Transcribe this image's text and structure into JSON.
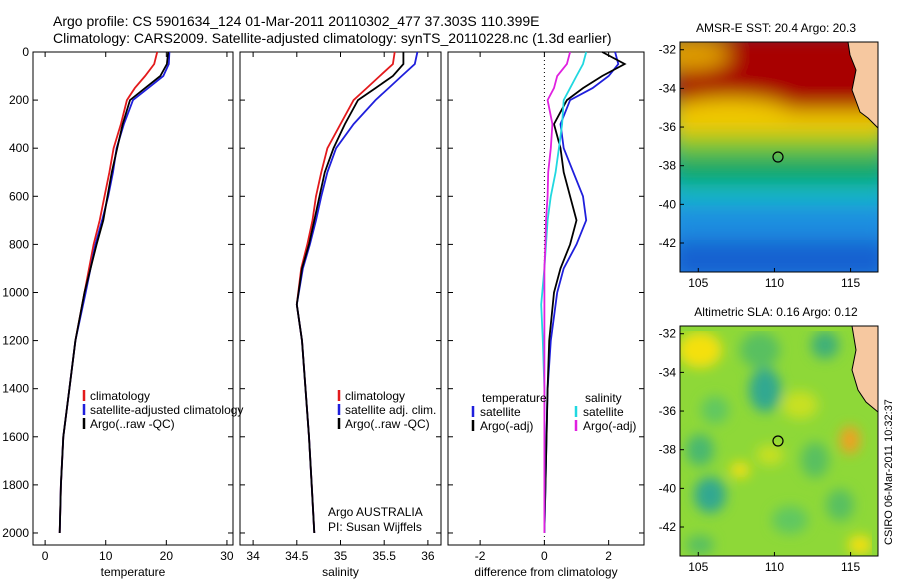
{
  "title_line1": "Argo profile: CS 5901634_124 01-Mar-2011 20110302_477 37.303S 110.399E",
  "title_line2": "Climatology: CARS2009. Satellite-adjusted climatology: synTS_20110228.nc (1.3d earlier)",
  "footer_credit": "CSIRO 06-Mar-2011 10:32:37",
  "colors": {
    "climatology": "#e31a1c",
    "satellite": "#1f1fdc",
    "argo": "#000000",
    "argo_adj_salinity": "#e020e0",
    "satellite_salinity": "#20d8e0"
  },
  "chart_data": [
    {
      "type": "line",
      "xlabel": "temperature",
      "ylabel": "",
      "xlim": [
        -2,
        31
      ],
      "ylim": [
        2050,
        0
      ],
      "xticks": [
        0,
        10,
        20,
        30
      ],
      "yticks": [
        0,
        200,
        400,
        600,
        800,
        1000,
        1200,
        1400,
        1600,
        1800,
        2000
      ],
      "legend": {
        "placement": "bottom-right",
        "entries": [
          "climatology",
          "satellite-adjusted climatology",
          "Argo(..raw -QC)"
        ]
      },
      "series": [
        {
          "name": "climatology",
          "x": [
            18.5,
            18.0,
            16.5,
            14.8,
            13.5,
            12.5,
            11.3,
            10.6,
            9.8,
            9.0,
            8.0,
            6.5,
            5.0,
            4.0,
            3.0,
            2.6,
            2.4
          ],
          "y": [
            0,
            50,
            100,
            150,
            200,
            300,
            400,
            500,
            600,
            700,
            800,
            1000,
            1200,
            1400,
            1600,
            1800,
            2000
          ]
        },
        {
          "name": "satellite-adjusted climatology",
          "x": [
            20.5,
            20.4,
            19.5,
            17.0,
            14.5,
            13.0,
            11.8,
            11.2,
            10.4,
            9.4,
            8.3,
            6.7,
            5.0,
            4.0,
            3.0,
            2.6,
            2.4
          ],
          "y": [
            0,
            50,
            100,
            150,
            200,
            300,
            400,
            500,
            600,
            700,
            800,
            1000,
            1200,
            1400,
            1600,
            1800,
            2000
          ]
        },
        {
          "name": "Argo(..raw -QC)",
          "x": [
            20.3,
            20.1,
            19.0,
            16.5,
            14.0,
            12.8,
            11.9,
            11.0,
            10.3,
            9.6,
            8.5,
            6.5,
            5.0,
            4.0,
            3.0,
            2.6,
            2.4
          ],
          "y": [
            0,
            50,
            100,
            150,
            200,
            300,
            400,
            500,
            600,
            700,
            800,
            1000,
            1200,
            1400,
            1600,
            1800,
            2000
          ]
        }
      ]
    },
    {
      "type": "line",
      "xlabel": "salinity",
      "ylabel": "",
      "xlim": [
        33.85,
        36.15
      ],
      "ylim": [
        2050,
        0
      ],
      "xticks": [
        34,
        34.5,
        35,
        35.5,
        36
      ],
      "yticks": [
        0,
        200,
        400,
        600,
        800,
        1000,
        1200,
        1400,
        1600,
        1800,
        2000
      ],
      "legend": {
        "placement": "bottom-right",
        "entries": [
          "climatology",
          "satellite adj. clim.",
          "Argo(..raw -QC)"
        ]
      },
      "annotation": [
        "Argo AUSTRALIA",
        "PI: Susan Wijffels"
      ],
      "series": [
        {
          "name": "climatology",
          "x": [
            35.62,
            35.6,
            35.45,
            35.3,
            35.15,
            35.0,
            34.85,
            34.78,
            34.72,
            34.68,
            34.62,
            34.55,
            34.5,
            34.56,
            34.6,
            34.64,
            34.67,
            34.7
          ],
          "y": [
            0,
            50,
            100,
            150,
            200,
            300,
            400,
            500,
            600,
            700,
            800,
            900,
            1050,
            1200,
            1400,
            1600,
            1800,
            2000
          ]
        },
        {
          "name": "satellite adj. clim.",
          "x": [
            35.88,
            35.85,
            35.7,
            35.55,
            35.4,
            35.15,
            34.95,
            34.85,
            34.78,
            34.72,
            34.65,
            34.57,
            34.5,
            34.56,
            34.6,
            34.64,
            34.67,
            34.7
          ],
          "y": [
            0,
            50,
            100,
            150,
            200,
            300,
            400,
            500,
            600,
            700,
            800,
            900,
            1050,
            1200,
            1400,
            1600,
            1800,
            2000
          ]
        },
        {
          "name": "Argo(..raw -QC)",
          "x": [
            35.72,
            35.72,
            35.6,
            35.4,
            35.2,
            35.05,
            34.92,
            34.82,
            34.76,
            34.7,
            34.64,
            34.56,
            34.5,
            34.56,
            34.6,
            34.64,
            34.67,
            34.7
          ],
          "y": [
            0,
            50,
            100,
            150,
            200,
            300,
            400,
            500,
            600,
            700,
            800,
            900,
            1050,
            1200,
            1400,
            1600,
            1800,
            2000
          ]
        }
      ]
    },
    {
      "type": "line",
      "xlabel": "difference from climatology",
      "ylabel": "",
      "xlim": [
        -3.0,
        3.1
      ],
      "ylim": [
        2050,
        0
      ],
      "xticks": [
        -2,
        0,
        2
      ],
      "yticks": [
        0,
        200,
        400,
        600,
        800,
        1000,
        1200,
        1400,
        1600,
        1800,
        2000
      ],
      "legend": {
        "placement": "bottom",
        "entries": [
          "temperature",
          "satellite",
          "Argo(-adj)",
          "salinity",
          "satellite",
          "Argo(-adj)"
        ]
      },
      "series": [
        {
          "name": "temperature satellite",
          "x": [
            2.2,
            2.3,
            2.0,
            1.5,
            0.8,
            0.5,
            0.6,
            0.9,
            1.2,
            1.3,
            1.0,
            0.6,
            0.4,
            0.2,
            0.1,
            0.05,
            0.0
          ],
          "y": [
            0,
            50,
            100,
            150,
            200,
            300,
            400,
            500,
            600,
            700,
            800,
            900,
            1000,
            1200,
            1400,
            1700,
            2000
          ]
        },
        {
          "name": "temperature Argo(-adj)",
          "x": [
            1.8,
            2.5,
            1.8,
            1.2,
            0.7,
            0.3,
            0.5,
            0.6,
            0.8,
            1.0,
            0.8,
            0.5,
            0.3,
            0.15,
            0.1,
            0.05,
            0.0
          ],
          "y": [
            0,
            50,
            100,
            150,
            200,
            300,
            400,
            500,
            600,
            700,
            800,
            900,
            1000,
            1200,
            1400,
            1700,
            2000
          ]
        },
        {
          "name": "salinity satellite",
          "x": [
            1.3,
            1.2,
            1.0,
            0.8,
            0.6,
            0.55,
            0.45,
            0.35,
            0.2,
            0.1,
            0.05,
            0.0,
            -0.1,
            -0.05,
            0.0,
            0.0,
            0.0
          ],
          "y": [
            0,
            50,
            100,
            150,
            200,
            300,
            400,
            500,
            600,
            700,
            800,
            900,
            1050,
            1200,
            1400,
            1700,
            2000
          ]
        },
        {
          "name": "salinity Argo(-adj)",
          "x": [
            0.8,
            0.7,
            0.4,
            0.3,
            0.1,
            0.25,
            0.2,
            0.12,
            0.1,
            0.05,
            0.03,
            0.0,
            0.0,
            0.0,
            0.0,
            0.0,
            0.0
          ],
          "y": [
            0,
            50,
            100,
            150,
            200,
            300,
            400,
            500,
            600,
            700,
            800,
            900,
            1050,
            1200,
            1400,
            1700,
            2000
          ]
        }
      ]
    },
    {
      "type": "heatmap",
      "title": "AMSR-E SST: 20.4 Argo: 20.3",
      "xlim": [
        103.8,
        116.8
      ],
      "ylim": [
        -43.5,
        -31.6
      ],
      "xticks": [
        105,
        110,
        115
      ],
      "yticks": [
        -32,
        -34,
        -36,
        -38,
        -40,
        -42
      ],
      "marker": {
        "lon": 110.399,
        "lat": -37.303
      }
    },
    {
      "type": "heatmap",
      "title": "Altimetric SLA: 0.16 Argo: 0.12",
      "xlim": [
        103.8,
        116.8
      ],
      "ylim": [
        -43.5,
        -31.6
      ],
      "xticks": [
        105,
        110,
        115
      ],
      "yticks": [
        -32,
        -34,
        -36,
        -38,
        -40,
        -42
      ],
      "marker": {
        "lon": 110.399,
        "lat": -37.303
      }
    }
  ]
}
